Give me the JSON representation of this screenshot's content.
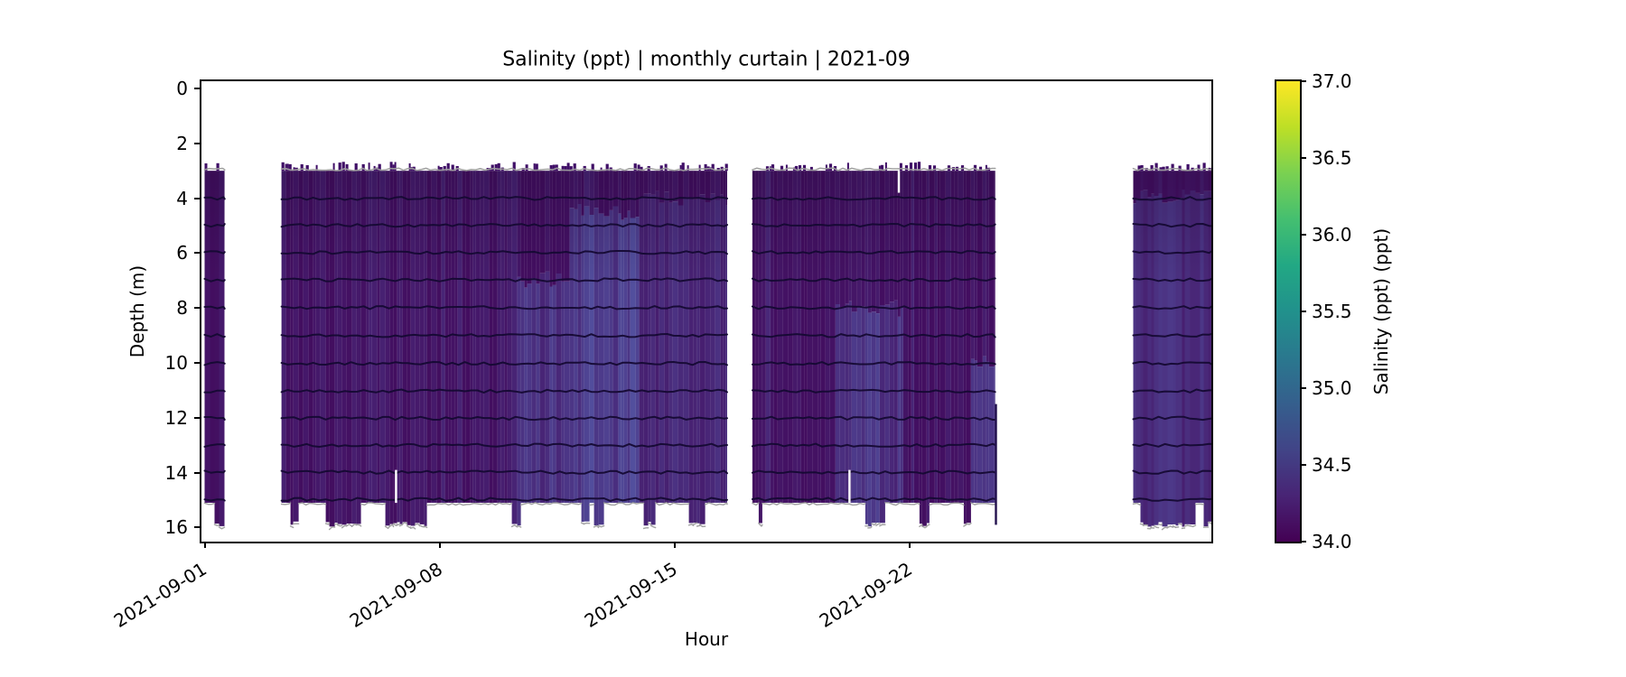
{
  "figure": {
    "title": "Salinity (ppt) | monthly curtain | 2021-09",
    "xlabel": "Hour",
    "ylabel": "Depth (m)",
    "colorbar_label": "Salinity (ppt) (ppt)"
  },
  "chart_data": {
    "type": "heatmap",
    "title": "Salinity (ppt) | monthly curtain | 2021-09",
    "xlabel": "Hour",
    "ylabel": "Depth (m)",
    "grid": false,
    "legend": false,
    "x_start_date": "2021-09-01",
    "x_tick_labels": [
      "2021-09-01",
      "2021-09-08",
      "2021-09-15",
      "2021-09-22"
    ],
    "x_tick_days": [
      0,
      7,
      14,
      21
    ],
    "xlim_days": [
      -0.1,
      30.0
    ],
    "y_tick_labels": [
      "0",
      "2",
      "4",
      "6",
      "8",
      "10",
      "12",
      "14",
      "16"
    ],
    "y_tick_values": [
      0,
      2,
      4,
      6,
      8,
      10,
      12,
      14,
      16
    ],
    "ylim": [
      16.5,
      -0.26
    ],
    "colormap": "viridis",
    "color_range_ppt": [
      34.0,
      37.0
    ],
    "colorbar_tick_values": [
      34.0,
      34.5,
      35.0,
      35.5,
      36.0,
      36.5,
      37.0
    ],
    "colorbar_tick_labels": [
      "34.0",
      "34.5",
      "35.0",
      "35.5",
      "36.0",
      "36.5",
      "37.0"
    ],
    "background_salinity_ppt": 34.1,
    "depth_coverage_m": [
      3.0,
      16.0
    ],
    "ragged_bottom_main_depth_m": 15.1,
    "sensor_trace_depths_m": [
      4,
      5,
      6,
      7,
      8,
      9,
      10,
      11,
      12,
      13,
      14,
      15
    ],
    "time_coverage_segments": [
      {
        "start": "2021-09-01 00:00",
        "end": "2021-09-01 14:00",
        "start_day": 0.0,
        "end_day": 0.6
      },
      {
        "start": "2021-09-03 07:00",
        "end": "2021-09-16 13:30",
        "start_day": 2.29,
        "end_day": 15.56
      },
      {
        "start": "2021-09-17 07:30",
        "end": "2021-09-24 13:00",
        "start_day": 16.31,
        "end_day": 23.54
      },
      {
        "start": "2021-09-28 15:30",
        "end": "2021-10-01 00:00",
        "start_day": 27.65,
        "end_day": 30.0
      }
    ],
    "high_salinity_features": [
      {
        "start_day": 9.3,
        "end_day": 10.8,
        "top_depth_m": 7.0,
        "value_ppt": 34.45
      },
      {
        "start_day": 10.8,
        "end_day": 13.0,
        "top_depth_m": 4.5,
        "value_ppt": 34.5
      },
      {
        "start_day": 13.0,
        "end_day": 15.56,
        "top_depth_m": 4.0,
        "value_ppt": 34.3
      },
      {
        "start_day": 18.8,
        "end_day": 20.8,
        "top_depth_m": 8.0,
        "value_ppt": 34.4
      },
      {
        "start_day": 22.8,
        "end_day": 23.54,
        "top_depth_m": 10.0,
        "value_ppt": 34.45
      },
      {
        "start_day": 27.65,
        "end_day": 30.0,
        "top_depth_m": 4.0,
        "value_ppt": 34.4
      }
    ],
    "gap_artifacts": [
      {
        "day": 5.7,
        "depth_range_m": [
          13.9,
          15.1
        ]
      },
      {
        "day": 19.2,
        "depth_range_m": [
          13.9,
          15.1
        ]
      },
      {
        "day": 20.67,
        "depth_range_m": [
          3.0,
          3.8
        ]
      }
    ],
    "edge_spike_artifacts": [
      {
        "day": 23.56,
        "depth_range_m": [
          11.5,
          15.9
        ]
      }
    ]
  }
}
